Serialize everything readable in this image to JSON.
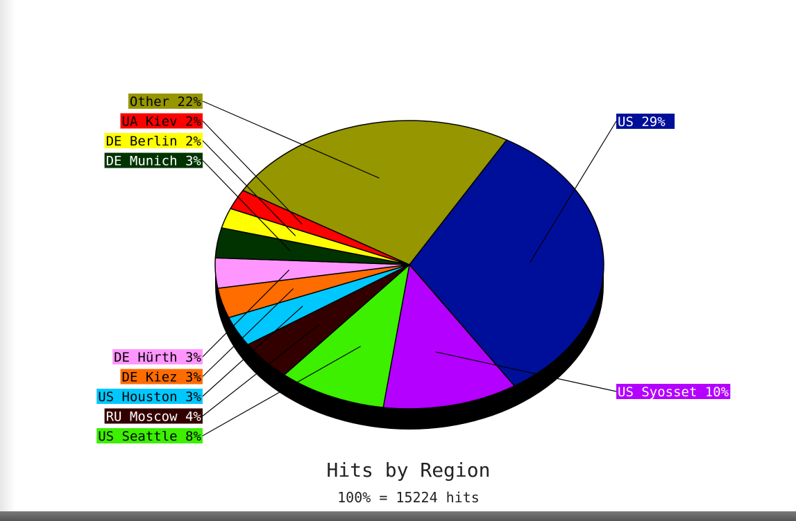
{
  "chart_data": {
    "type": "pie",
    "title": "Hits by Region",
    "subtitle": "100% = 15224 hits",
    "slices": [
      {
        "label": "US  29%",
        "name": "US",
        "value": 29,
        "color": "#000f9a",
        "text_color": "#ffffff"
      },
      {
        "label": "US Syosset 10%",
        "name": "US Syosset",
        "value": 10,
        "color": "#b400ff",
        "text_color": "#ffffff"
      },
      {
        "label": "US Seattle 8%",
        "name": "US Seattle",
        "value": 8,
        "color": "#3cf000",
        "text_color": "#000000"
      },
      {
        "label": "RU Moscow 4%",
        "name": "RU Moscow",
        "value": 4,
        "color": "#330000",
        "text_color": "#ffffff"
      },
      {
        "label": "US Houston 3%",
        "name": "US Houston",
        "value": 3,
        "color": "#00c8ff",
        "text_color": "#000000"
      },
      {
        "label": "DE Kiez 3%",
        "name": "DE Kiez",
        "value": 3,
        "color": "#ff6c00",
        "text_color": "#000000"
      },
      {
        "label": "DE Hürth 3%",
        "name": "DE Hürth",
        "value": 3,
        "color": "#ff96ff",
        "text_color": "#000000"
      },
      {
        "label": "DE Munich 3%",
        "name": "DE Munich",
        "value": 3,
        "color": "#003300",
        "text_color": "#ffffff"
      },
      {
        "label": "DE Berlin 2%",
        "name": "DE Berlin",
        "value": 2,
        "color": "#ffff00",
        "text_color": "#000000"
      },
      {
        "label": "UA Kiev 2%",
        "name": "UA Kiev",
        "value": 2,
        "color": "#ff0000",
        "text_color": "#000000"
      },
      {
        "label": "Other 22%",
        "name": "Other",
        "value": 22,
        "color": "#969600",
        "text_color": "#000000"
      }
    ]
  }
}
